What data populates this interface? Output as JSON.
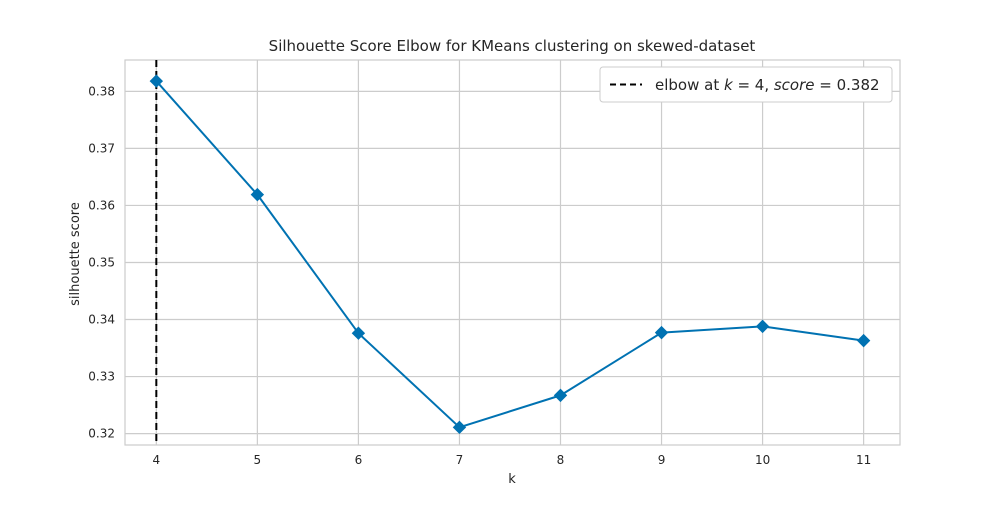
{
  "chart_data": {
    "type": "line",
    "title": "Silhouette Score Elbow for KMeans clustering on skewed-dataset",
    "xlabel": "k",
    "ylabel": "silhouette score",
    "x": [
      4,
      5,
      6,
      7,
      8,
      9,
      10,
      11
    ],
    "series": [
      {
        "values": [
          0.3818,
          0.3619,
          0.3376,
          0.3211,
          0.3267,
          0.3377,
          0.3388,
          0.3363
        ],
        "color": "#0072b2",
        "marker": "diamond"
      }
    ],
    "xlim": [
      3.69,
      11.36
    ],
    "ylim": [
      0.318,
      0.3855
    ],
    "x_ticks": [
      4,
      5,
      6,
      7,
      8,
      9,
      10,
      11
    ],
    "x_tick_labels": [
      "4",
      "5",
      "6",
      "7",
      "8",
      "9",
      "10",
      "11"
    ],
    "y_ticks": [
      0.32,
      0.33,
      0.34,
      0.35,
      0.36,
      0.37,
      0.38
    ],
    "y_tick_labels": [
      "0.32",
      "0.33",
      "0.34",
      "0.35",
      "0.36",
      "0.37",
      "0.38"
    ],
    "grid": true,
    "legend": {
      "placement": "top-right",
      "prefix": "elbow at ",
      "k_symbol": "k",
      "k_equals": " = 4, ",
      "score_symbol": "score",
      "score_equals": " = 0.382"
    },
    "elbow": {
      "k": 4,
      "score": 0.382,
      "style": "dashed",
      "color": "#000000"
    }
  }
}
